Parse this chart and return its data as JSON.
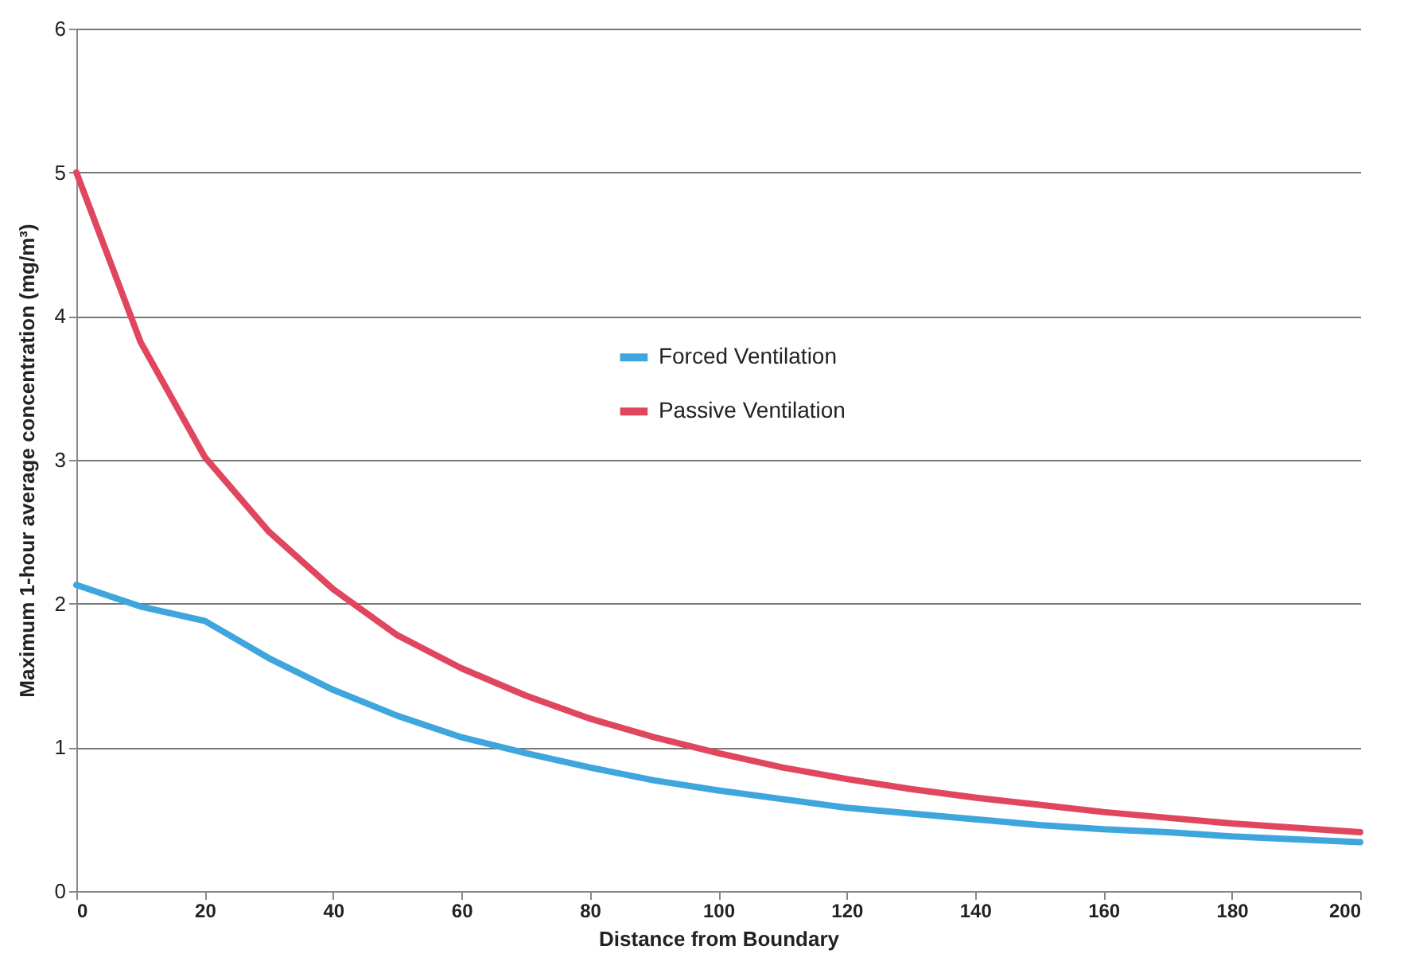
{
  "chart_data": {
    "type": "line",
    "xlabel": "Distance from Boundary",
    "ylabel": "Maximum 1-hour average concentration (mg/m³)",
    "x": [
      0,
      10,
      20,
      30,
      40,
      50,
      60,
      70,
      80,
      90,
      100,
      110,
      120,
      130,
      140,
      150,
      160,
      170,
      180,
      190,
      200
    ],
    "series": [
      {
        "name": "Forced Ventilation",
        "color": "#3fa6dd",
        "values": [
          2.13,
          1.98,
          1.88,
          1.62,
          1.4,
          1.22,
          1.07,
          0.96,
          0.86,
          0.77,
          0.7,
          0.64,
          0.58,
          0.54,
          0.5,
          0.46,
          0.43,
          0.41,
          0.38,
          0.36,
          0.34
        ]
      },
      {
        "name": "Passive Ventilation",
        "color": "#e0475f",
        "values": [
          5.0,
          3.82,
          3.02,
          2.5,
          2.1,
          1.78,
          1.55,
          1.36,
          1.2,
          1.07,
          0.96,
          0.86,
          0.78,
          0.71,
          0.65,
          0.6,
          0.55,
          0.51,
          0.47,
          0.44,
          0.41
        ]
      }
    ],
    "xlim": [
      0,
      200
    ],
    "xticks": [
      0,
      20,
      40,
      60,
      80,
      100,
      120,
      140,
      160,
      180,
      200
    ],
    "ylim": [
      0,
      6
    ],
    "yticks": [
      0,
      1,
      2,
      3,
      4,
      5,
      6
    ],
    "grid": "y",
    "legend": "center",
    "marker": "none",
    "line_style": "solid"
  }
}
